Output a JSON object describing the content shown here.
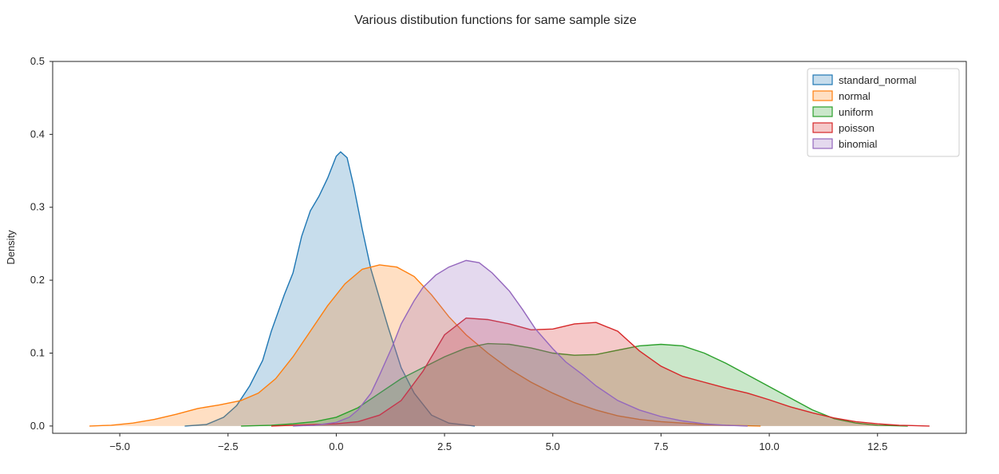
{
  "chart_data": {
    "type": "area",
    "title": "Various distibution functions for same sample size",
    "xlabel": "",
    "ylabel": "Density",
    "xlim": [
      -6.55,
      14.55
    ],
    "ylim": [
      -0.01,
      0.5
    ],
    "xticks": [
      -5.0,
      -2.5,
      0.0,
      2.5,
      5.0,
      7.5,
      10.0,
      12.5
    ],
    "xtick_labels": [
      "−5.0",
      "−2.5",
      "0.0",
      "2.5",
      "5.0",
      "7.5",
      "10.0",
      "12.5"
    ],
    "yticks": [
      0.0,
      0.1,
      0.2,
      0.3,
      0.4,
      0.5
    ],
    "ytick_labels": [
      "0.0",
      "0.1",
      "0.2",
      "0.3",
      "0.4",
      "0.5"
    ],
    "grid": false,
    "legend": {
      "position": "top-right"
    },
    "series": [
      {
        "name": "standard_normal",
        "color": "#1f77b4",
        "points": [
          [
            -3.5,
            0.0
          ],
          [
            -3.0,
            0.002
          ],
          [
            -2.6,
            0.012
          ],
          [
            -2.3,
            0.028
          ],
          [
            -2.0,
            0.055
          ],
          [
            -1.7,
            0.09
          ],
          [
            -1.5,
            0.13
          ],
          [
            -1.2,
            0.18
          ],
          [
            -1.0,
            0.21
          ],
          [
            -0.8,
            0.26
          ],
          [
            -0.6,
            0.295
          ],
          [
            -0.4,
            0.315
          ],
          [
            -0.2,
            0.34
          ],
          [
            0.0,
            0.37
          ],
          [
            0.1,
            0.376
          ],
          [
            0.25,
            0.368
          ],
          [
            0.4,
            0.33
          ],
          [
            0.6,
            0.27
          ],
          [
            0.8,
            0.215
          ],
          [
            1.0,
            0.175
          ],
          [
            1.2,
            0.135
          ],
          [
            1.5,
            0.08
          ],
          [
            1.8,
            0.045
          ],
          [
            2.2,
            0.015
          ],
          [
            2.6,
            0.004
          ],
          [
            3.2,
            0.0
          ]
        ]
      },
      {
        "name": "normal",
        "color": "#ff7f0e",
        "points": [
          [
            -5.7,
            0.0
          ],
          [
            -5.2,
            0.001
          ],
          [
            -4.7,
            0.004
          ],
          [
            -4.2,
            0.009
          ],
          [
            -3.7,
            0.016
          ],
          [
            -3.2,
            0.024
          ],
          [
            -2.7,
            0.029
          ],
          [
            -2.2,
            0.035
          ],
          [
            -1.8,
            0.045
          ],
          [
            -1.4,
            0.065
          ],
          [
            -1.0,
            0.095
          ],
          [
            -0.6,
            0.13
          ],
          [
            -0.2,
            0.165
          ],
          [
            0.2,
            0.195
          ],
          [
            0.6,
            0.215
          ],
          [
            1.0,
            0.221
          ],
          [
            1.4,
            0.218
          ],
          [
            1.8,
            0.205
          ],
          [
            2.2,
            0.18
          ],
          [
            2.6,
            0.15
          ],
          [
            3.0,
            0.125
          ],
          [
            3.5,
            0.1
          ],
          [
            4.0,
            0.078
          ],
          [
            4.5,
            0.06
          ],
          [
            5.0,
            0.045
          ],
          [
            5.5,
            0.032
          ],
          [
            6.0,
            0.022
          ],
          [
            6.5,
            0.014
          ],
          [
            7.0,
            0.009
          ],
          [
            7.5,
            0.006
          ],
          [
            8.0,
            0.004
          ],
          [
            8.5,
            0.002
          ],
          [
            9.0,
            0.001
          ],
          [
            9.8,
            0.0
          ]
        ]
      },
      {
        "name": "uniform",
        "color": "#2ca02c",
        "points": [
          [
            -2.2,
            0.0
          ],
          [
            -1.5,
            0.001
          ],
          [
            -1.0,
            0.003
          ],
          [
            -0.5,
            0.006
          ],
          [
            0.0,
            0.012
          ],
          [
            0.5,
            0.025
          ],
          [
            1.0,
            0.045
          ],
          [
            1.5,
            0.065
          ],
          [
            2.0,
            0.08
          ],
          [
            2.5,
            0.095
          ],
          [
            3.0,
            0.107
          ],
          [
            3.5,
            0.113
          ],
          [
            4.0,
            0.112
          ],
          [
            4.5,
            0.107
          ],
          [
            5.0,
            0.1
          ],
          [
            5.5,
            0.097
          ],
          [
            6.0,
            0.098
          ],
          [
            6.5,
            0.104
          ],
          [
            7.0,
            0.11
          ],
          [
            7.5,
            0.112
          ],
          [
            8.0,
            0.11
          ],
          [
            8.5,
            0.1
          ],
          [
            9.0,
            0.086
          ],
          [
            9.5,
            0.07
          ],
          [
            10.0,
            0.054
          ],
          [
            10.5,
            0.038
          ],
          [
            11.0,
            0.022
          ],
          [
            11.5,
            0.01
          ],
          [
            12.0,
            0.004
          ],
          [
            12.5,
            0.001
          ],
          [
            13.2,
            0.0
          ]
        ]
      },
      {
        "name": "poisson",
        "color": "#d62728",
        "points": [
          [
            -1.5,
            0.0
          ],
          [
            -1.0,
            0.001
          ],
          [
            0.0,
            0.003
          ],
          [
            0.5,
            0.006
          ],
          [
            1.0,
            0.015
          ],
          [
            1.5,
            0.035
          ],
          [
            2.0,
            0.075
          ],
          [
            2.5,
            0.125
          ],
          [
            3.0,
            0.148
          ],
          [
            3.5,
            0.146
          ],
          [
            4.0,
            0.14
          ],
          [
            4.5,
            0.132
          ],
          [
            5.0,
            0.133
          ],
          [
            5.5,
            0.14
          ],
          [
            6.0,
            0.142
          ],
          [
            6.5,
            0.13
          ],
          [
            7.0,
            0.103
          ],
          [
            7.5,
            0.082
          ],
          [
            8.0,
            0.068
          ],
          [
            8.5,
            0.06
          ],
          [
            9.0,
            0.052
          ],
          [
            9.5,
            0.045
          ],
          [
            10.0,
            0.036
          ],
          [
            10.5,
            0.026
          ],
          [
            11.0,
            0.018
          ],
          [
            11.5,
            0.011
          ],
          [
            12.0,
            0.006
          ],
          [
            12.5,
            0.003
          ],
          [
            13.0,
            0.001
          ],
          [
            13.7,
            0.0
          ]
        ]
      },
      {
        "name": "binomial",
        "color": "#9467bd",
        "points": [
          [
            -1.0,
            0.0
          ],
          [
            -0.5,
            0.001
          ],
          [
            0.0,
            0.005
          ],
          [
            0.3,
            0.012
          ],
          [
            0.5,
            0.022
          ],
          [
            0.8,
            0.045
          ],
          [
            1.0,
            0.07
          ],
          [
            1.3,
            0.11
          ],
          [
            1.5,
            0.14
          ],
          [
            1.8,
            0.172
          ],
          [
            2.0,
            0.19
          ],
          [
            2.3,
            0.207
          ],
          [
            2.6,
            0.218
          ],
          [
            3.0,
            0.227
          ],
          [
            3.3,
            0.224
          ],
          [
            3.6,
            0.21
          ],
          [
            4.0,
            0.185
          ],
          [
            4.3,
            0.16
          ],
          [
            4.6,
            0.133
          ],
          [
            5.0,
            0.106
          ],
          [
            5.3,
            0.088
          ],
          [
            5.7,
            0.07
          ],
          [
            6.0,
            0.055
          ],
          [
            6.5,
            0.035
          ],
          [
            7.0,
            0.022
          ],
          [
            7.5,
            0.013
          ],
          [
            8.0,
            0.007
          ],
          [
            8.5,
            0.003
          ],
          [
            9.0,
            0.001
          ],
          [
            9.5,
            0.0
          ]
        ]
      }
    ]
  }
}
